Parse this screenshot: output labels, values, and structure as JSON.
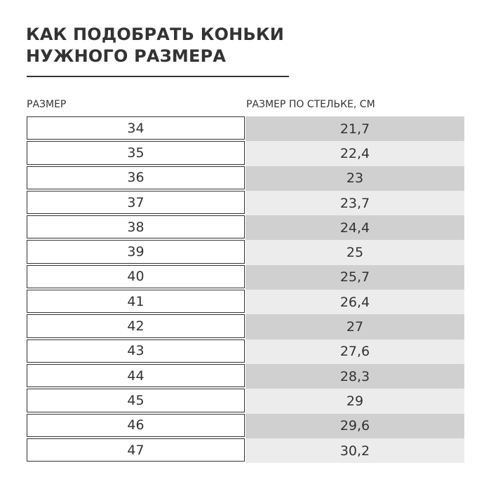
{
  "title": {
    "line1": "КАК ПОДОБРАТЬ КОНЬКИ",
    "line2": "НУЖНОГО РАЗМЕРА"
  },
  "table": {
    "headers": [
      "РАЗМЕР",
      "РАЗМЕР ПО СТЕЛЬКЕ, СМ"
    ],
    "colors": {
      "odd": "#d0d0d0",
      "even": "#ececec",
      "border": "#333333"
    },
    "rows": [
      [
        "34",
        "21,7"
      ],
      [
        "35",
        "22,4"
      ],
      [
        "36",
        "23"
      ],
      [
        "37",
        "23,7"
      ],
      [
        "38",
        "24,4"
      ],
      [
        "39",
        "25"
      ],
      [
        "40",
        "25,7"
      ],
      [
        "41",
        "26,4"
      ],
      [
        "42",
        "27"
      ],
      [
        "43",
        "27,6"
      ],
      [
        "44",
        "28,3"
      ],
      [
        "45",
        "29"
      ],
      [
        "46",
        "29,6"
      ],
      [
        "47",
        "30,2"
      ]
    ]
  }
}
